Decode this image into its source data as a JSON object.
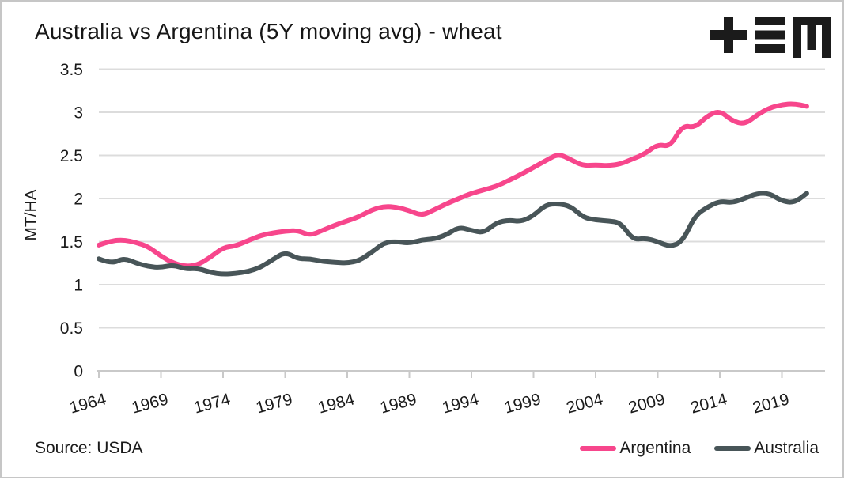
{
  "header": {
    "title": "Australia vs Argentina (5Y moving avg) - wheat"
  },
  "chart_data": {
    "type": "line",
    "title": "Australia vs Argentina (5Y moving avg) - wheat",
    "xlabel": "",
    "ylabel": "MT/HA",
    "source": "Source: USDA",
    "ylim": [
      0,
      3.5
    ],
    "y_ticks": [
      3.5,
      3,
      2.5,
      2,
      1.5,
      1,
      0.5,
      0
    ],
    "x_tick_years": [
      1964,
      1969,
      1974,
      1979,
      1984,
      1989,
      1994,
      1999,
      2004,
      2009,
      2014,
      2019
    ],
    "years_start": 1964,
    "years_end": 2021,
    "grid": "horizontal",
    "legend_position": "bottom-right",
    "colors": {
      "argentina": "#f7468c",
      "australia": "#485558",
      "gridline": "#dcdcdc",
      "axis": "#c9c9c9",
      "text": "#1a1a1a",
      "background": "#ffffff"
    },
    "series": [
      {
        "name": "Argentina",
        "color": "#f7468c",
        "values": [
          1.46,
          1.51,
          1.52,
          1.49,
          1.44,
          1.33,
          1.25,
          1.21,
          1.23,
          1.32,
          1.43,
          1.45,
          1.51,
          1.57,
          1.6,
          1.62,
          1.63,
          1.57,
          1.63,
          1.69,
          1.74,
          1.79,
          1.87,
          1.91,
          1.9,
          1.86,
          1.8,
          1.87,
          1.94,
          2.0,
          2.06,
          2.1,
          2.14,
          2.21,
          2.28,
          2.36,
          2.44,
          2.52,
          2.45,
          2.38,
          2.39,
          2.38,
          2.4,
          2.46,
          2.52,
          2.63,
          2.6,
          2.85,
          2.82,
          2.96,
          3.02,
          2.9,
          2.86,
          2.97,
          3.05,
          3.09,
          3.1,
          3.07
        ]
      },
      {
        "name": "Australia",
        "color": "#485558",
        "values": [
          1.3,
          1.24,
          1.31,
          1.25,
          1.21,
          1.2,
          1.23,
          1.18,
          1.19,
          1.14,
          1.12,
          1.13,
          1.15,
          1.2,
          1.29,
          1.38,
          1.3,
          1.3,
          1.27,
          1.26,
          1.25,
          1.28,
          1.38,
          1.49,
          1.5,
          1.48,
          1.52,
          1.53,
          1.58,
          1.67,
          1.63,
          1.6,
          1.72,
          1.75,
          1.73,
          1.8,
          1.93,
          1.94,
          1.91,
          1.78,
          1.75,
          1.74,
          1.72,
          1.52,
          1.54,
          1.5,
          1.44,
          1.5,
          1.8,
          1.9,
          1.97,
          1.95,
          2.0,
          2.06,
          2.06,
          1.97,
          1.95,
          2.06
        ]
      }
    ]
  }
}
